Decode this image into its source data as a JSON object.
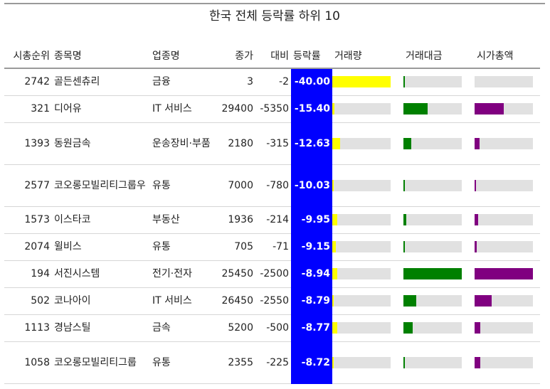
{
  "title": "한국 전체 등락률 하위 10",
  "columns": {
    "rank": "시총순위",
    "name": "종목명",
    "sector": "업종명",
    "close": "종가",
    "change": "대비",
    "pct": "등락률",
    "volume": "거래량",
    "value": "거래대금",
    "cap": "시가총액"
  },
  "colors": {
    "pct_cell": "#0000ff",
    "volume_bar": "#ffff00",
    "value_bar": "#008000",
    "cap_bar": "#800080",
    "bar_track": "#e1e1e1"
  },
  "chart_data": {
    "type": "table",
    "title": "한국 전체 등락률 하위 10",
    "bar_columns_note_fraction_of_max": true,
    "rows": [
      {
        "rank": "2742",
        "name": "골든센츄리",
        "sector": "금융",
        "close": "3",
        "change": "-2",
        "pct": "-40.00",
        "volume": 1.0,
        "value": 0.02,
        "cap": 0.0
      },
      {
        "rank": "321",
        "name": "디어유",
        "sector": "IT 서비스",
        "close": "29400",
        "change": "-5350",
        "pct": "-15.40",
        "volume": 0.04,
        "value": 0.42,
        "cap": 0.5
      },
      {
        "rank": "1393",
        "name": "동원금속",
        "sector": "운송장비·부품",
        "close": "2180",
        "change": "-315",
        "pct": "-12.63",
        "volume": 0.14,
        "value": 0.14,
        "cap": 0.08
      },
      {
        "rank": "2577",
        "name": "코오롱모빌리티그룹우",
        "sector": "유통",
        "close": "7000",
        "change": "-780",
        "pct": "-10.03",
        "volume": 0.02,
        "value": 0.02,
        "cap": 0.02
      },
      {
        "rank": "1573",
        "name": "이스타코",
        "sector": "부동산",
        "close": "1936",
        "change": "-214",
        "pct": "-9.95",
        "volume": 0.08,
        "value": 0.05,
        "cap": 0.06
      },
      {
        "rank": "2074",
        "name": "윌비스",
        "sector": "유통",
        "close": "705",
        "change": "-71",
        "pct": "-9.15",
        "volume": 0.06,
        "value": 0.02,
        "cap": 0.04
      },
      {
        "rank": "194",
        "name": "서진시스템",
        "sector": "전기·전자",
        "close": "25450",
        "change": "-2500",
        "pct": "-8.94",
        "volume": 0.08,
        "value": 1.0,
        "cap": 1.0
      },
      {
        "rank": "502",
        "name": "코나아이",
        "sector": "IT 서비스",
        "close": "26450",
        "change": "-2550",
        "pct": "-8.79",
        "volume": 0.03,
        "value": 0.22,
        "cap": 0.29
      },
      {
        "rank": "1113",
        "name": "경남스틸",
        "sector": "금속",
        "close": "5200",
        "change": "-500",
        "pct": "-8.77",
        "volume": 0.09,
        "value": 0.16,
        "cap": 0.1
      },
      {
        "rank": "1058",
        "name": "코오롱모빌리티그룹",
        "sector": "유통",
        "close": "2355",
        "change": "-225",
        "pct": "-8.72",
        "volume": 0.02,
        "value": 0.02,
        "cap": 0.1
      }
    ]
  }
}
